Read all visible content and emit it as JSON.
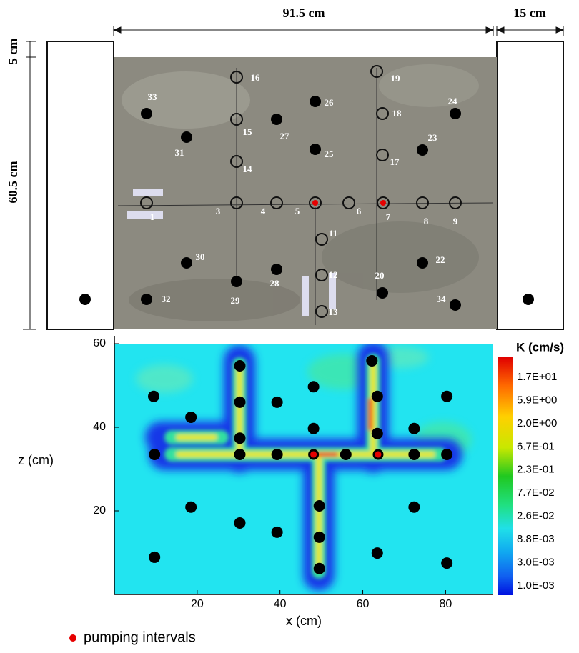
{
  "dimensions": {
    "width": "91.5 cm",
    "side": "15 cm",
    "top": "5 cm",
    "height": "60.5 cm"
  },
  "wells": [
    {
      "label": "1",
      "kind": "open"
    },
    {
      "label": "3",
      "kind": "open"
    },
    {
      "label": "4",
      "kind": "open"
    },
    {
      "label": "5",
      "kind": "pumping"
    },
    {
      "label": "6",
      "kind": "open"
    },
    {
      "label": "7",
      "kind": "pumping"
    },
    {
      "label": "8",
      "kind": "open"
    },
    {
      "label": "9",
      "kind": "open"
    },
    {
      "label": "11",
      "kind": "open"
    },
    {
      "label": "12",
      "kind": "open"
    },
    {
      "label": "13",
      "kind": "open"
    },
    {
      "label": "14",
      "kind": "open"
    },
    {
      "label": "15",
      "kind": "open"
    },
    {
      "label": "16",
      "kind": "open"
    },
    {
      "label": "17",
      "kind": "open"
    },
    {
      "label": "18",
      "kind": "open"
    },
    {
      "label": "19",
      "kind": "open"
    },
    {
      "label": "20",
      "kind": "filled"
    },
    {
      "label": "22",
      "kind": "filled"
    },
    {
      "label": "23",
      "kind": "filled"
    },
    {
      "label": "24",
      "kind": "filled"
    },
    {
      "label": "25",
      "kind": "filled"
    },
    {
      "label": "26",
      "kind": "filled"
    },
    {
      "label": "27",
      "kind": "filled"
    },
    {
      "label": "28",
      "kind": "filled"
    },
    {
      "label": "29",
      "kind": "filled"
    },
    {
      "label": "30",
      "kind": "filled"
    },
    {
      "label": "31",
      "kind": "filled"
    },
    {
      "label": "32",
      "kind": "filled"
    },
    {
      "label": "33",
      "kind": "filled"
    },
    {
      "label": "34",
      "kind": "filled"
    }
  ],
  "chart_data": {
    "type": "scatter",
    "x_label": "x (cm)",
    "y_label": "z (cm)",
    "xlim": [
      0,
      91.5
    ],
    "ylim": [
      0,
      60
    ],
    "xticks": [
      20,
      40,
      60,
      80
    ],
    "yticks": [
      20,
      40,
      60
    ],
    "series": [
      {
        "color": "#000000",
        "x": [
          9.5,
          18.5,
          9.7,
          18.5,
          9.7,
          30.3,
          30.3,
          30.3,
          30.3,
          30.3,
          39.3,
          39.3,
          39.3,
          48.1,
          48.1,
          55.9,
          49.5,
          49.5,
          49.5,
          62.2,
          63.5,
          63.5,
          63.5,
          72.4,
          72.4,
          72.4,
          80.3,
          80.3,
          80.3
        ],
        "values": [
          47.4,
          42.4,
          33.5,
          20.9,
          8.9,
          54.7,
          46.0,
          37.4,
          33.5,
          17.1,
          46.0,
          33.5,
          14.9,
          49.7,
          39.7,
          33.5,
          21.2,
          13.7,
          6.2,
          55.9,
          47.4,
          38.5,
          9.9,
          39.7,
          33.5,
          20.9,
          47.4,
          33.5,
          7.5
        ]
      },
      {
        "name": "pumping intervals",
        "color": "#e60000",
        "x": [
          48.1,
          63.7
        ],
        "values": [
          33.5,
          33.5
        ]
      }
    ],
    "colorbar": {
      "title": "K (cm/s)",
      "labels": [
        "1.7E+01",
        "5.9E+00",
        "2.0E+00",
        "6.7E-01",
        "2.3E-01",
        "7.7E-02",
        "2.6E-02",
        "8.8E-03",
        "3.0E-03",
        "1.0E-03"
      ]
    }
  }
}
